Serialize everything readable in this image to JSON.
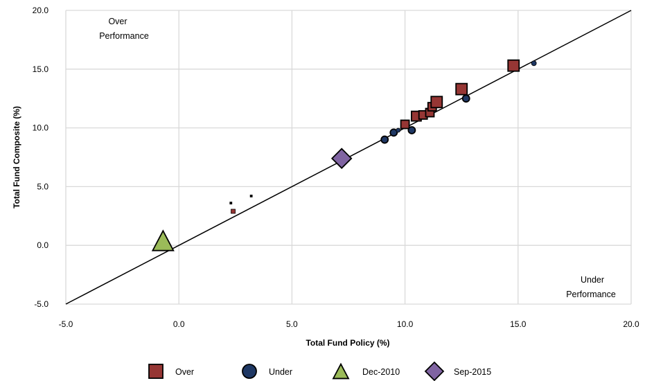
{
  "chart_data": {
    "type": "scatter",
    "xlabel": "Total Fund Policy (%)",
    "ylabel": "Total Fund Composite (%)",
    "xlim": [
      -5.0,
      20.0
    ],
    "ylim": [
      -5.0,
      20.0
    ],
    "x_ticks": [
      "-5.0",
      "0.0",
      "5.0",
      "10.0",
      "15.0",
      "20.0"
    ],
    "y_ticks": [
      "-5.0",
      "0.0",
      "5.0",
      "10.0",
      "15.0",
      "20.0"
    ],
    "grid": true,
    "reference_line": {
      "from": [
        -5.0,
        -5.0
      ],
      "to": [
        20.0,
        20.0
      ]
    },
    "annotations": {
      "over_line1": "Over",
      "over_line2": "Performance",
      "under_line1": "Under",
      "under_line2": "Performance"
    },
    "legend_position": "bottom",
    "series": [
      {
        "name": "Over",
        "marker": "square",
        "color": "#963634",
        "points": [
          {
            "x": 2.3,
            "y": 3.6,
            "size": 3
          },
          {
            "x": 3.2,
            "y": 4.2,
            "size": 3
          },
          {
            "x": 2.4,
            "y": 2.9,
            "size": 6
          },
          {
            "x": 10.0,
            "y": 10.3,
            "size": 12
          },
          {
            "x": 10.5,
            "y": 11.0,
            "size": 14
          },
          {
            "x": 10.8,
            "y": 11.1,
            "size": 12
          },
          {
            "x": 11.1,
            "y": 11.3,
            "size": 12
          },
          {
            "x": 11.2,
            "y": 11.8,
            "size": 12
          },
          {
            "x": 11.4,
            "y": 12.2,
            "size": 16
          },
          {
            "x": 12.5,
            "y": 13.3,
            "size": 16
          },
          {
            "x": 14.8,
            "y": 15.3,
            "size": 16
          }
        ]
      },
      {
        "name": "Under",
        "marker": "circle",
        "color": "#1f3864",
        "points": [
          {
            "x": 9.1,
            "y": 9.0,
            "size": 10
          },
          {
            "x": 9.5,
            "y": 9.6,
            "size": 10
          },
          {
            "x": 9.7,
            "y": 9.8,
            "size": 6
          },
          {
            "x": 10.3,
            "y": 9.8,
            "size": 10
          },
          {
            "x": 12.7,
            "y": 12.5,
            "size": 10
          },
          {
            "x": 15.7,
            "y": 15.5,
            "size": 7
          }
        ]
      },
      {
        "name": "Dec-2010",
        "marker": "triangle",
        "color": "#9bbb59",
        "points": [
          {
            "x": -0.7,
            "y": 0.4,
            "size": 30
          }
        ]
      },
      {
        "name": "Sep-2015",
        "marker": "diamond",
        "color": "#8064a2",
        "points": [
          {
            "x": 7.2,
            "y": 7.4,
            "size": 28
          }
        ]
      }
    ]
  }
}
